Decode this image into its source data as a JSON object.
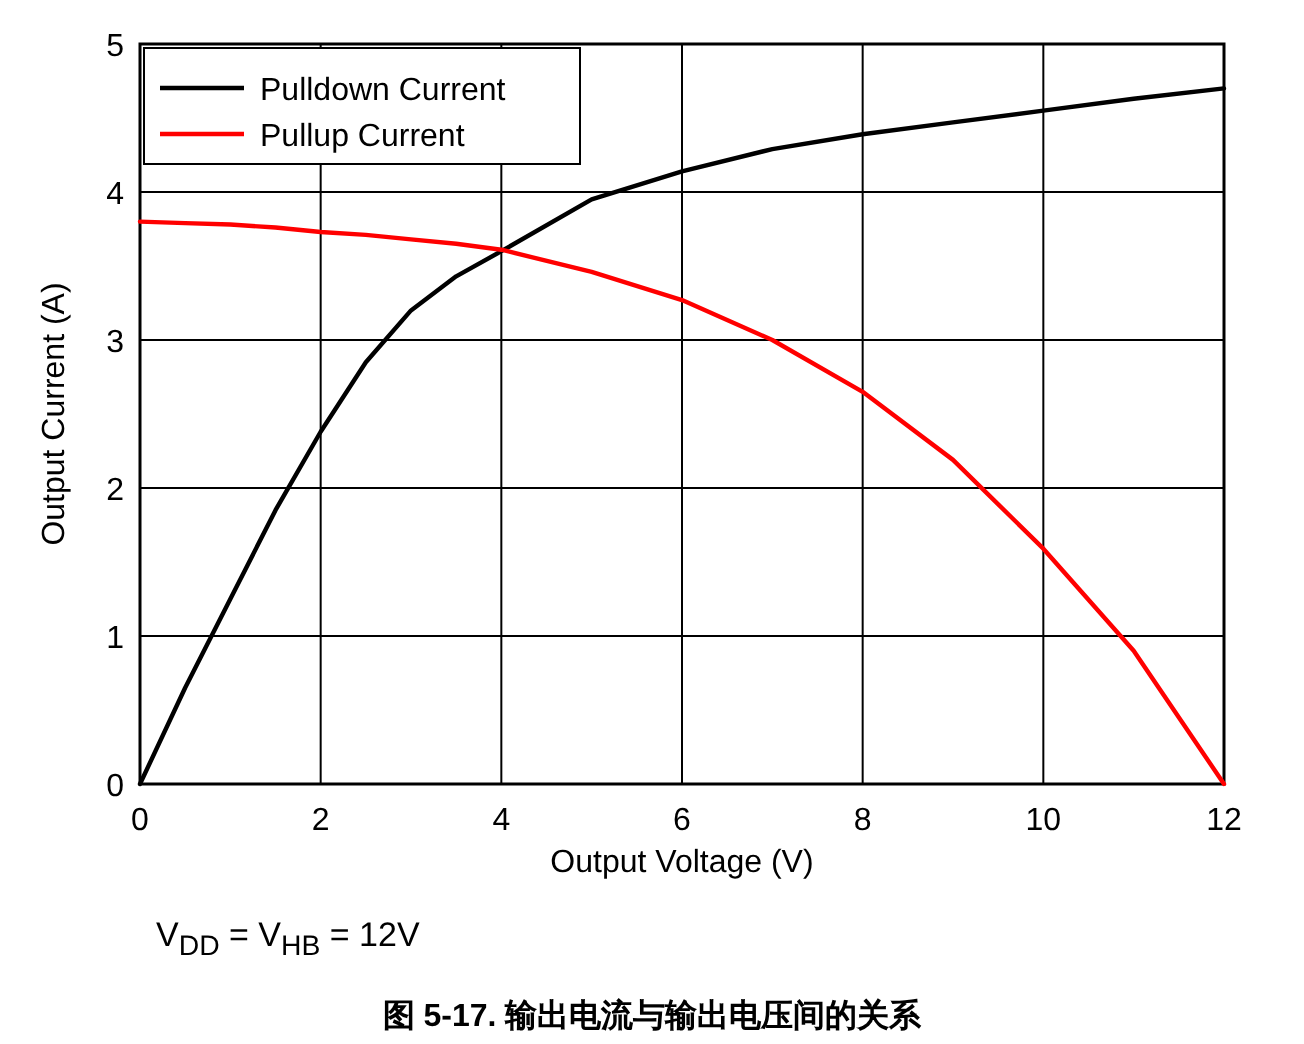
{
  "chart_data": {
    "type": "line",
    "xlabel": "Output Voltage (V)",
    "ylabel": "Output Current (A)",
    "xlim": [
      0,
      12
    ],
    "ylim": [
      0,
      5
    ],
    "xticks": [
      0,
      2,
      4,
      6,
      8,
      10,
      12
    ],
    "yticks": [
      0,
      1,
      2,
      3,
      4,
      5
    ],
    "grid": true,
    "legend": "top left",
    "marker": "none",
    "line_style": "solid",
    "x": [
      0,
      0.5,
      1,
      1.5,
      2,
      2.5,
      3,
      3.5,
      4,
      5,
      6,
      7,
      8,
      9,
      10,
      11,
      12
    ],
    "series": [
      {
        "name": "Pulldown Current",
        "color": "#000000",
        "values": [
          0,
          0.65,
          1.25,
          1.85,
          2.38,
          2.85,
          3.2,
          3.43,
          3.6,
          3.95,
          4.14,
          4.29,
          4.39,
          4.47,
          4.55,
          4.63,
          4.7
        ]
      },
      {
        "name": "Pullup Current",
        "color": "#ff0000",
        "values": [
          3.8,
          3.79,
          3.78,
          3.76,
          3.73,
          3.71,
          3.68,
          3.65,
          3.61,
          3.46,
          3.27,
          3.0,
          2.65,
          2.19,
          1.59,
          0.9,
          0
        ]
      }
    ],
    "annotations": [
      "V$_{DD}$ = V$_{HB}$ = 12V",
      "图 5-17. 输出电流与输出电压间的关系"
    ]
  }
}
